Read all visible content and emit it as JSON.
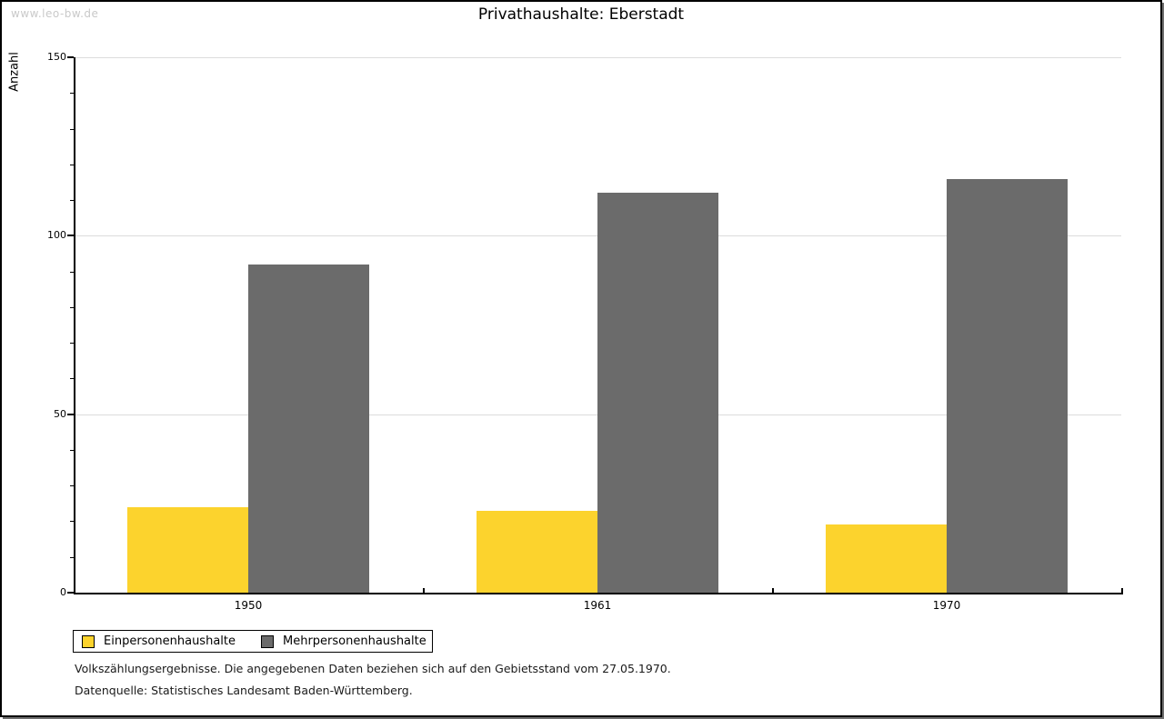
{
  "watermark": "www.leo-bw.de",
  "title": "Privathaushalte: Eberstadt",
  "chart_data": {
    "type": "bar",
    "title": "Privathaushalte: Eberstadt",
    "categories": [
      "1950",
      "1961",
      "1970"
    ],
    "series": [
      {
        "name": "Einpersonenhaushalte",
        "color": "#FCD32D",
        "values": [
          24,
          23,
          19
        ]
      },
      {
        "name": "Mehrpersonenhaushalte",
        "color": "#6B6B6B",
        "values": [
          92,
          112,
          116
        ]
      }
    ],
    "xlabel": "",
    "ylabel": "Anzahl",
    "ylim": [
      0,
      150
    ],
    "y_ticks_major": [
      0,
      50,
      100,
      150
    ],
    "y_minor_step": 10,
    "grid": "horizontal gridlines at major ticks",
    "gridline_color": "#dcdcdc",
    "legend_position": "bottom-left"
  },
  "footer": {
    "line1": "Volkszählungsergebnisse. Die angegebenen Daten beziehen sich auf den Gebietsstand vom 27.05.1970.",
    "line2": "Datenquelle: Statistisches Landesamt Baden-Württemberg."
  }
}
